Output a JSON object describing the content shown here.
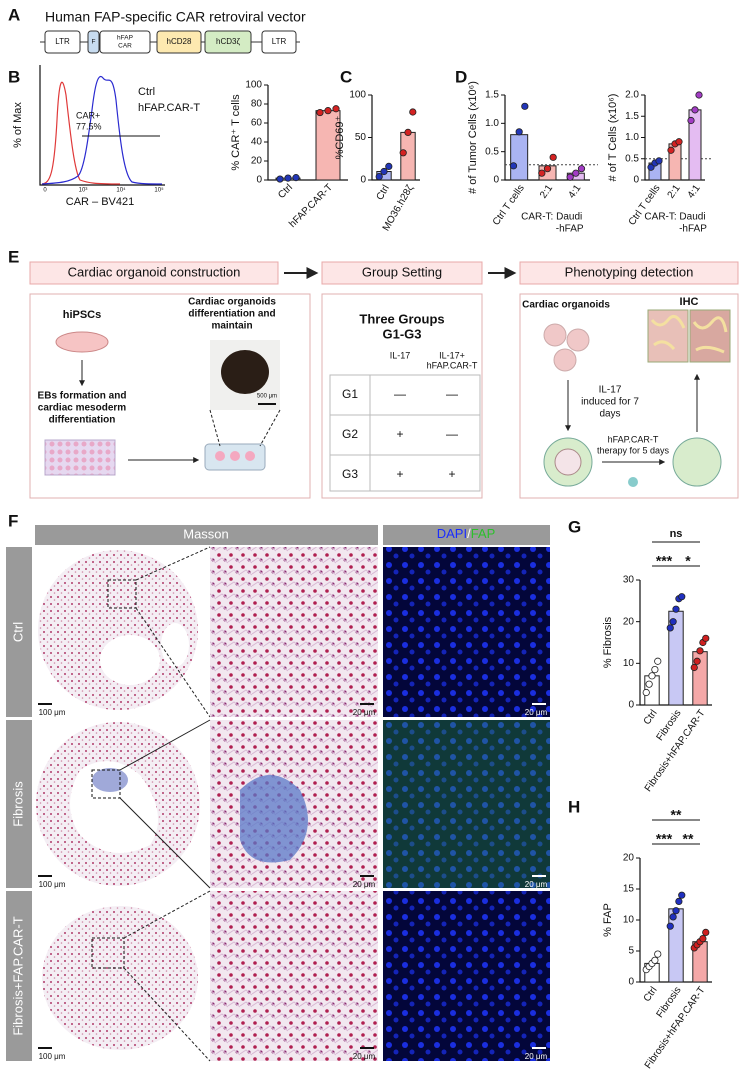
{
  "panel_labels": [
    "A",
    "B",
    "C",
    "D",
    "E",
    "F",
    "G",
    "H"
  ],
  "vector": {
    "title": "Human FAP-specific CAR retroviral vector",
    "segments": [
      [
        "LTR"
      ],
      [
        "F"
      ],
      [
        "hFAP",
        "CAR"
      ],
      [
        "hCD28"
      ],
      [
        "hCD3ζ"
      ],
      [
        "LTR"
      ]
    ]
  },
  "flow": {
    "ylabel": "% of Max",
    "xlabel": "CAR – BV421",
    "legend": [
      "Ctrl",
      "hFAP.CAR-T"
    ],
    "gate": [
      "CAR+",
      "77.5%"
    ],
    "xticks": [
      "0",
      "10³",
      "10⁴",
      "10⁵"
    ]
  },
  "chart_data": [
    {
      "type": "bar",
      "ylabel": "% CAR⁺ T cells",
      "categories": [
        "Ctrl",
        "hFAP.CAR-T"
      ],
      "values": [
        2,
        73
      ],
      "points": [
        [
          1,
          2,
          2.5
        ],
        [
          71,
          73,
          75
        ]
      ],
      "colors": [
        "#aab4f2",
        "#f6b6b2"
      ],
      "point_colors": [
        "#2236b8",
        "#d42222"
      ],
      "ylim": [
        0,
        100
      ],
      "yticks": [
        0,
        20,
        40,
        60,
        80,
        100
      ]
    },
    {
      "type": "bar",
      "ylabel": "%CD69⁺",
      "categories": [
        "Ctrl",
        "MO36.h28ζ"
      ],
      "values": [
        10,
        56
      ],
      "points": [
        [
          4,
          10,
          16
        ],
        [
          32,
          56,
          80
        ]
      ],
      "colors": [
        "#aab4f2",
        "#f6b6b2"
      ],
      "point_colors": [
        "#2236b8",
        "#d42222"
      ],
      "ylim": [
        0,
        100
      ],
      "yticks": [
        0,
        50,
        100
      ]
    },
    {
      "type": "bar",
      "ylabel": "# of Tumor Cells (x10⁶)",
      "categories": [
        "Ctrl T cells",
        "2:1",
        "4:1"
      ],
      "group_label": [
        "CAR-T: Daudi",
        "-hFAP"
      ],
      "values": [
        0.8,
        0.25,
        0.12
      ],
      "points": [
        [
          0.25,
          0.85,
          1.3
        ],
        [
          0.12,
          0.2,
          0.4
        ],
        [
          0.05,
          0.12,
          0.2
        ]
      ],
      "colors": [
        "#aab4f2",
        "#f6b6b2",
        "#e4bcf2"
      ],
      "point_colors": [
        "#2236b8",
        "#d42222",
        "#a23cc4"
      ],
      "reference_line": 0.27,
      "ylim": [
        0,
        1.5
      ],
      "yticks": [
        0,
        0.5,
        {
          "value": 1,
          "label": "1.0"
        },
        1.5
      ]
    },
    {
      "type": "bar",
      "ylabel": "# of T Cells (x10⁶)",
      "categories": [
        "Ctrl T cells",
        "2:1",
        "4:1"
      ],
      "group_label": [
        "CAR-T: Daudi",
        "-hFAP"
      ],
      "values": [
        0.4,
        0.85,
        1.65
      ],
      "points": [
        [
          0.3,
          0.4,
          0.45
        ],
        [
          0.7,
          0.85,
          0.9
        ],
        [
          1.4,
          1.65,
          2.0
        ]
      ],
      "colors": [
        "#aab4f2",
        "#f6b6b2",
        "#e4bcf2"
      ],
      "point_colors": [
        "#2236b8",
        "#d42222",
        "#a23cc4"
      ],
      "reference_line": 0.5,
      "ylim": [
        0,
        2
      ],
      "yticks": [
        0,
        0.5,
        {
          "value": 1,
          "label": "1.0"
        },
        1.5,
        {
          "value": 2,
          "label": "2.0"
        }
      ]
    },
    {
      "type": "bar",
      "ylabel": "% Fibrosis",
      "categories": [
        "Ctrl",
        "Fibrosis",
        "Fibrosis+hFAP.CAR-T"
      ],
      "values": [
        7,
        22.5,
        12.8
      ],
      "points": [
        [
          3,
          5,
          7,
          8.5,
          10.5
        ],
        [
          18.5,
          20,
          23,
          25.5,
          26
        ],
        [
          9,
          10.5,
          13,
          15,
          16
        ]
      ],
      "colors": [
        "#ffffff",
        "#c8c8f4",
        "#f4a8a8"
      ],
      "point_colors": [
        "#ffffff",
        "#2030c0",
        "#d02020"
      ],
      "annotations": [
        {
          "label": "***",
          "from": 0,
          "to": 1
        },
        {
          "label": "*",
          "from": 1,
          "to": 2
        },
        {
          "label": "ns",
          "from": 0,
          "to": 2
        }
      ],
      "ylim": [
        0,
        30
      ],
      "yticks": [
        0,
        10,
        20,
        30
      ]
    },
    {
      "type": "bar",
      "ylabel": "% FAP",
      "categories": [
        "Ctrl",
        "Fibrosis",
        "Fibrosis+hFAP.CAR-T"
      ],
      "values": [
        3,
        11.8,
        6.5
      ],
      "points": [
        [
          2,
          2.5,
          3,
          3.5,
          4.5
        ],
        [
          9,
          10.5,
          11.5,
          13,
          14
        ],
        [
          5.5,
          6,
          6.5,
          7,
          8
        ]
      ],
      "colors": [
        "#ffffff",
        "#c8c8f4",
        "#f4a8a8"
      ],
      "point_colors": [
        "#ffffff",
        "#2030c0",
        "#d02020"
      ],
      "annotations": [
        {
          "label": "***",
          "from": 0,
          "to": 1
        },
        {
          "label": "**",
          "from": 1,
          "to": 2
        },
        {
          "label": "**",
          "from": 0,
          "to": 2
        }
      ],
      "ylim": [
        0,
        20
      ],
      "yticks": [
        0,
        5,
        10,
        15,
        20
      ]
    }
  ],
  "workflow": {
    "steps": [
      "Cardiac organoid construction",
      "Group Setting",
      "Phenotyping detection"
    ],
    "construction": {
      "hipsc": "hiPSCs",
      "organoids": [
        "Cardiac organoids",
        "differentiation and",
        "maintain"
      ],
      "ebs": [
        "EBs formation and",
        "cardiac mesoderm",
        "differentiation"
      ],
      "scale": "500 μm"
    },
    "groups": {
      "title": [
        "Three Groups",
        "G1-G3"
      ],
      "columns": [
        [
          "IL-17"
        ],
        [
          "IL-17+",
          "hFAP.CAR-T"
        ]
      ],
      "rows": [
        [
          "G1",
          "—",
          "—"
        ],
        [
          "G2",
          "+",
          "—"
        ],
        [
          "G3",
          "+",
          "+"
        ]
      ]
    },
    "phenotyping": {
      "organoids": "Cardiac organoids",
      "ihc": "IHC",
      "il17": [
        "IL-17",
        "induced for 7",
        "days"
      ],
      "therapy": [
        "hFAP.CAR-T",
        "therapy for 5 days"
      ]
    }
  },
  "histology": {
    "masson": "Masson",
    "fluor": [
      "DAPI",
      "/",
      "FAP"
    ],
    "rows": [
      "Ctrl",
      "Fibrosis",
      "Fibrosis+FAP.CAR-T"
    ],
    "scale_low": "100 μm",
    "scale_high": "20 μm"
  }
}
